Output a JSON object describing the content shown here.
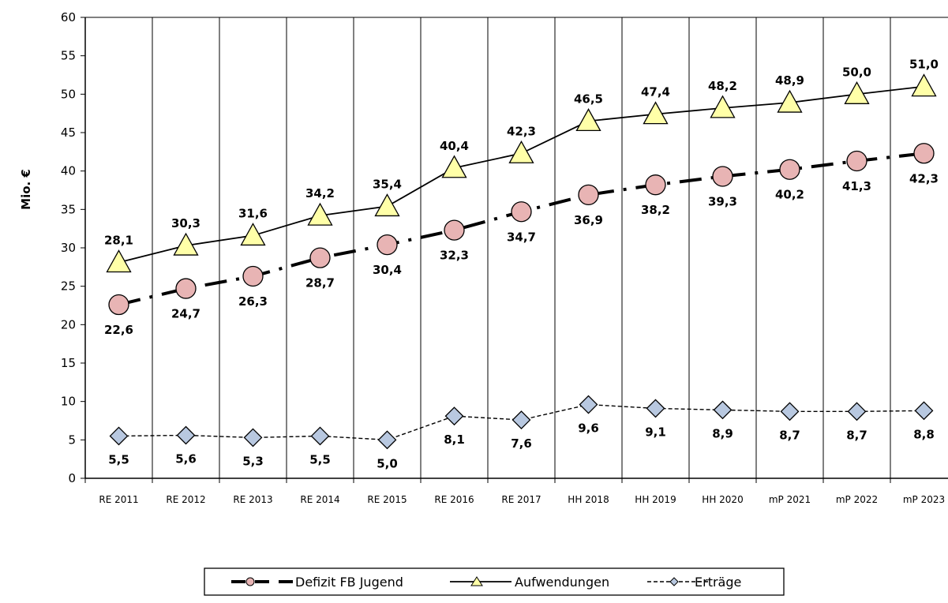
{
  "chart_data": {
    "type": "line",
    "ylabel": "Mio. €",
    "ylim": [
      0,
      60
    ],
    "ytick_step": 5,
    "grid": "vertical",
    "legend_position": "bottom",
    "categories": [
      "RE 2011",
      "RE 2012",
      "RE 2013",
      "RE 2014",
      "RE 2015",
      "RE 2016",
      "RE 2017",
      "HH 2018",
      "HH 2019",
      "HH 2020",
      "mP 2021",
      "mP 2022",
      "mP 2023"
    ],
    "series": [
      {
        "name": "Defizit FB Jugend",
        "values": [
          22.6,
          24.7,
          26.3,
          28.7,
          30.4,
          32.3,
          34.7,
          36.9,
          38.2,
          39.3,
          40.2,
          41.3,
          42.3
        ],
        "labels": [
          "22,6",
          "24,7",
          "26,3",
          "28,7",
          "30,4",
          "32,3",
          "34,7",
          "36,9",
          "38,2",
          "39,3",
          "40,2",
          "41,3",
          "42,3"
        ],
        "line_style": "dash-dot",
        "marker": "circle",
        "marker_color": "#e8b4b4"
      },
      {
        "name": "Aufwendungen",
        "values": [
          28.1,
          30.3,
          31.6,
          34.2,
          35.4,
          40.4,
          42.3,
          46.5,
          47.4,
          48.2,
          48.9,
          50.0,
          51.0
        ],
        "labels": [
          "28,1",
          "30,3",
          "31,6",
          "34,2",
          "35,4",
          "40,4",
          "42,3",
          "46,5",
          "47,4",
          "48,2",
          "48,9",
          "50,0",
          "51,0"
        ],
        "line_style": "solid",
        "marker": "triangle",
        "marker_color": "#ffffa8"
      },
      {
        "name": "Erträge",
        "values": [
          5.5,
          5.6,
          5.3,
          5.5,
          5.0,
          8.1,
          7.6,
          9.6,
          9.1,
          8.9,
          8.7,
          8.7,
          8.8
        ],
        "labels": [
          "5,5",
          "5,6",
          "5,3",
          "5,5",
          "5,0",
          "8,1",
          "7,6",
          "9,6",
          "9,1",
          "8,9",
          "8,7",
          "8,7",
          "8,8"
        ],
        "line_style": "dashed",
        "marker": "diamond",
        "marker_color": "#b8c8e0"
      }
    ]
  }
}
